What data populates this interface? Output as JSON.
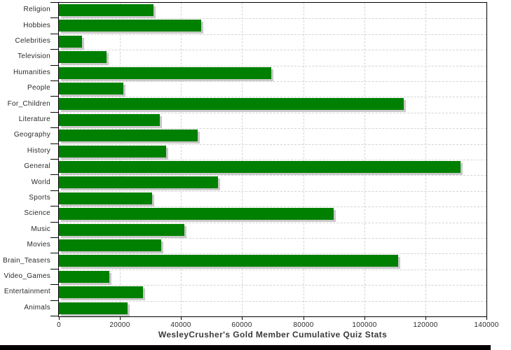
{
  "chart_data": {
    "type": "bar",
    "orientation": "horizontal",
    "title": "WesleyCrusher's Gold Member Cumulative Quiz Stats",
    "categories": [
      "Religion",
      "Hobbies",
      "Celebrities",
      "Television",
      "Humanities",
      "People",
      "For_Children",
      "Literature",
      "Geography",
      "History",
      "General",
      "World",
      "Sports",
      "Science",
      "Music",
      "Movies",
      "Brain_Teasers",
      "Video_Games",
      "Entertainment",
      "Animals"
    ],
    "values": [
      31000,
      46500,
      7500,
      15500,
      69500,
      21000,
      113000,
      33000,
      45500,
      35000,
      131500,
      52000,
      30500,
      90000,
      41000,
      33500,
      111000,
      16500,
      27500,
      22500
    ],
    "xlim": [
      0,
      140000
    ],
    "x_ticks": [
      0,
      20000,
      40000,
      60000,
      80000,
      100000,
      120000,
      140000
    ],
    "x_tick_labels": [
      "0",
      "20000",
      "40000",
      "60000",
      "80000",
      "100000",
      "120000",
      "140000"
    ],
    "grid": "dashed",
    "legend": "none",
    "bar_color": "#008000",
    "bar_shadow_color": "#c9c9c9",
    "grid_color": "#d4d4d4",
    "axis_color": "#000000",
    "label_color": "#2b2b2b",
    "title_color": "#3a3a3a"
  }
}
